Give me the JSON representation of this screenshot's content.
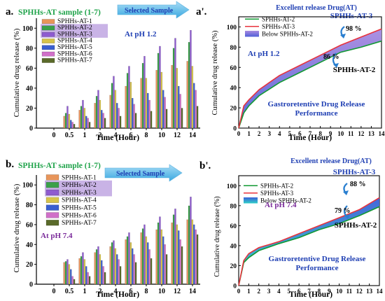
{
  "colors": {
    "green_title": "#1fa34a",
    "blue_title": "#1f3fb3",
    "purple_text": "#7a2a9a",
    "arrow_fill": "#6ec6ee",
    "highlight": "#c9b3e6",
    "line_at2": "#119933",
    "line_at3": "#e8333d",
    "band": "#5566dd",
    "band_bottom": "#2fd0c8"
  },
  "series_colors": [
    "#e8955a",
    "#3aa04a",
    "#8e5bd0",
    "#d7c44a",
    "#3a5fd0",
    "#d070c8",
    "#5a6a2a"
  ],
  "x_categories": [
    "0",
    "0.5",
    "1",
    "2",
    "4",
    "6",
    "8",
    "10",
    "12",
    "14"
  ],
  "charts": [
    {
      "panel_label": "a.",
      "legend_title": "SPHHs-AT sample (1-7)",
      "arrow_label": "Selected Sample",
      "condition_label": "At pH 1.2",
      "ylabel": "Cumulative drug release (%)",
      "xlabel": "Time (Hour)",
      "y_ticks": [
        "0",
        "20",
        "40",
        "60",
        "80",
        "100"
      ],
      "legend": [
        "SPHHs-AT-1",
        "SPHHs-AT-2",
        "SPHHs-AT-3",
        "SPHHs-AT-4",
        "SPHHs-AT-5",
        "SPHHs-AT-6",
        "SPHHs-AT-7"
      ]
    },
    {
      "panel_label": "b.",
      "legend_title": "SPHHs-AT sample (1-7)",
      "arrow_label": "Selected Sample",
      "condition_label": "At pH 7.4",
      "ylabel": "Cumulative drug release (%)",
      "xlabel": "Time (Hour)",
      "y_ticks": [
        "0",
        "20",
        "40",
        "60",
        "80",
        "100"
      ],
      "legend": [
        "SPHHs-AT-1",
        "SPHHs-AT-2",
        "SPHHs-AT-3",
        "SPHHs-AT-4",
        "SPHHs-AT-5",
        "SPHHs-AT-6",
        "SPHHs-AT-7"
      ]
    },
    {
      "panel_label": "a'.",
      "top_title": "Excellent release Drug(AT)",
      "label_top": "SPHHs-AT-3",
      "pct_top": "98 %",
      "pct_bottom": "86 %",
      "label_bottom": "SPHHs-AT-2",
      "condition_label": "At pH 1.2",
      "performance_title_1": "Gastroretentive Drug Release",
      "performance_title_2": "Performance",
      "ylabel": "Cumulative drug release (%)",
      "xlabel": "Time (Hour)",
      "legend": [
        "SPHHs-AT-2",
        "SPHHs-AT-3",
        "Below SPHHs-AT-2"
      ],
      "y_ticks": [
        "0",
        "20",
        "40",
        "60",
        "80",
        "100"
      ],
      "x_ticks": [
        "0",
        "1",
        "2",
        "3",
        "4",
        "5",
        "6",
        "7",
        "8",
        "9",
        "10",
        "11",
        "12",
        "13",
        "14"
      ]
    },
    {
      "panel_label": "b'.",
      "top_title": "Excellent release Drug(AT)",
      "label_top": "SPHHs-AT-3",
      "pct_top": "88 %",
      "pct_bottom": "79 %",
      "label_bottom": "SPHHs-AT-2",
      "condition_label": "At pH 7.4",
      "performance_title_1": "Gastroretentive Drug Release",
      "performance_title_2": "Performance",
      "ylabel": "Cumulative drug release (%)",
      "xlabel": "Time (Hour)",
      "legend": [
        "SPHHs-AT-2",
        "SPHHs-AT-3",
        "Below SPHHs-AT-2"
      ],
      "y_ticks": [
        "0",
        "20",
        "40",
        "60",
        "80",
        "100"
      ],
      "x_ticks": [
        "0",
        "1",
        "2",
        "3",
        "4",
        "5",
        "6",
        "7",
        "8",
        "9",
        "10",
        "11",
        "12",
        "13",
        "14"
      ]
    }
  ],
  "chart_data": [
    {
      "type": "bar",
      "panel": "a.",
      "categories": [
        "0",
        "0.5",
        "1",
        "2",
        "4",
        "6",
        "8",
        "10",
        "12",
        "14"
      ],
      "ylim": [
        0,
        110
      ],
      "series": [
        {
          "name": "SPHHs-AT-1",
          "values": [
            0,
            12,
            18,
            25,
            33,
            42,
            50,
            58,
            63,
            67
          ]
        },
        {
          "name": "SPHHs-AT-2",
          "values": [
            0,
            15,
            22,
            32,
            45,
            55,
            65,
            75,
            80,
            86
          ]
        },
        {
          "name": "SPHHs-AT-3",
          "values": [
            0,
            22,
            28,
            38,
            52,
            62,
            72,
            82,
            90,
            98
          ]
        },
        {
          "name": "SPHHs-AT-4",
          "values": [
            0,
            14,
            20,
            28,
            38,
            46,
            50,
            56,
            60,
            62
          ]
        },
        {
          "name": "SPHHs-AT-5",
          "values": [
            0,
            8,
            12,
            18,
            25,
            30,
            35,
            38,
            42,
            45
          ]
        },
        {
          "name": "SPHHs-AT-6",
          "values": [
            0,
            6,
            10,
            15,
            20,
            24,
            28,
            31,
            34,
            38
          ]
        },
        {
          "name": "SPHHs-AT-7",
          "values": [
            0,
            4,
            6,
            10,
            12,
            15,
            17,
            19,
            20,
            22
          ]
        }
      ]
    },
    {
      "type": "bar",
      "panel": "b.",
      "categories": [
        "0",
        "0.5",
        "1",
        "2",
        "4",
        "6",
        "8",
        "10",
        "12",
        "14"
      ],
      "ylim": [
        0,
        110
      ],
      "series": [
        {
          "name": "SPHHs-AT-1",
          "values": [
            0,
            22,
            26,
            32,
            38,
            45,
            52,
            55,
            62,
            65
          ]
        },
        {
          "name": "SPHHs-AT-2",
          "values": [
            0,
            23,
            28,
            35,
            42,
            48,
            56,
            62,
            70,
            79
          ]
        },
        {
          "name": "SPHHs-AT-3",
          "values": [
            0,
            25,
            32,
            38,
            44,
            52,
            60,
            68,
            76,
            88
          ]
        },
        {
          "name": "SPHHs-AT-4",
          "values": [
            0,
            20,
            25,
            30,
            36,
            42,
            48,
            55,
            60,
            65
          ]
        },
        {
          "name": "SPHHs-AT-5",
          "values": [
            0,
            15,
            18,
            24,
            30,
            36,
            42,
            48,
            54,
            60
          ]
        },
        {
          "name": "SPHHs-AT-6",
          "values": [
            0,
            8,
            12,
            18,
            25,
            30,
            35,
            40,
            45,
            55
          ]
        },
        {
          "name": "SPHHs-AT-7",
          "values": [
            0,
            5,
            8,
            12,
            18,
            22,
            26,
            30,
            38,
            50
          ]
        }
      ]
    },
    {
      "type": "line",
      "panel": "a'.",
      "x": [
        0,
        0.5,
        1,
        2,
        4,
        6,
        8,
        10,
        12,
        14
      ],
      "xlim": [
        0,
        14
      ],
      "ylim": [
        0,
        110
      ],
      "series": [
        {
          "name": "SPHHs-AT-2",
          "values": [
            0,
            15,
            22,
            32,
            45,
            55,
            65,
            75,
            80,
            86
          ]
        },
        {
          "name": "SPHHs-AT-3",
          "values": [
            0,
            22,
            28,
            38,
            52,
            62,
            72,
            82,
            90,
            98
          ]
        }
      ],
      "band": {
        "name": "Below SPHHs-AT-2",
        "between": [
          "SPHHs-AT-2",
          "SPHHs-AT-3"
        ]
      }
    },
    {
      "type": "line",
      "panel": "b'.",
      "x": [
        0,
        0.5,
        1,
        2,
        4,
        6,
        8,
        10,
        12,
        14
      ],
      "xlim": [
        0,
        14
      ],
      "ylim": [
        0,
        110
      ],
      "series": [
        {
          "name": "SPHHs-AT-2",
          "values": [
            0,
            23,
            28,
            35,
            42,
            48,
            56,
            62,
            70,
            79
          ]
        },
        {
          "name": "SPHHs-AT-3",
          "values": [
            0,
            25,
            32,
            38,
            44,
            52,
            60,
            68,
            76,
            88
          ]
        }
      ],
      "band": {
        "name": "Below SPHHs-AT-2",
        "between": [
          "SPHHs-AT-2",
          "SPHHs-AT-3"
        ]
      }
    }
  ]
}
